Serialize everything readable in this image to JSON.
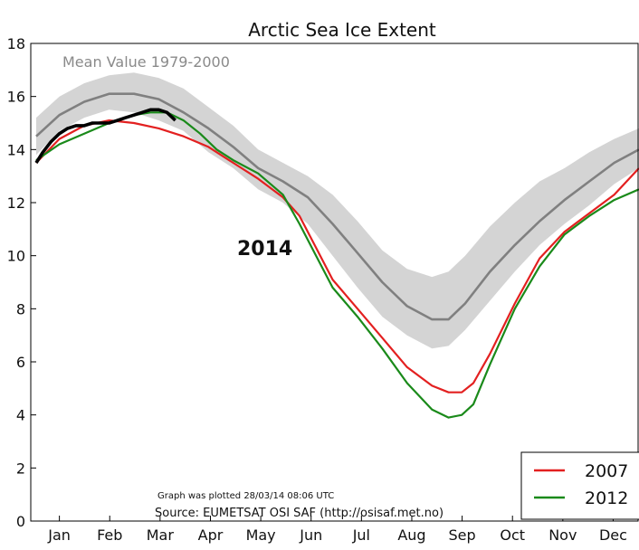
{
  "chart_data": {
    "type": "line",
    "title": "Arctic Sea Ice Extent",
    "xlabel": "",
    "ylabel": "",
    "ylim": [
      0,
      18
    ],
    "yticks": [
      "0",
      "2",
      "4",
      "6",
      "8",
      "10",
      "12",
      "14",
      "16",
      "18"
    ],
    "x_ticks": [
      "Jan",
      "Feb",
      "Mar",
      "Apr",
      "May",
      "Jun",
      "Jul",
      "Aug",
      "Sep",
      "Oct",
      "Nov",
      "Dec"
    ],
    "grid": false,
    "legend_position": "bottom-right",
    "annotations": {
      "mean_label": "Mean Value 1979-2000",
      "year_label": "2014",
      "plotted": "Graph was plotted 28/03/14 08:06 UTC",
      "source": "Source: EUMETSAT OSI SAF (http://osisaf.met.no)"
    },
    "band": {
      "x": [
        1,
        15,
        30,
        45,
        60,
        75,
        90,
        105,
        120,
        135,
        150,
        165,
        180,
        195,
        210,
        225,
        240,
        250,
        260,
        275,
        290,
        305,
        320,
        335,
        350,
        365
      ],
      "upper": [
        15.2,
        16.0,
        16.5,
        16.8,
        16.9,
        16.7,
        16.3,
        15.6,
        14.9,
        14.0,
        13.5,
        13.0,
        12.3,
        11.3,
        10.2,
        9.5,
        9.2,
        9.4,
        10.0,
        11.1,
        12.0,
        12.8,
        13.3,
        13.9,
        14.4,
        14.8
      ],
      "lower": [
        13.8,
        14.7,
        15.2,
        15.5,
        15.4,
        15.1,
        14.7,
        13.9,
        13.3,
        12.5,
        12.0,
        11.2,
        10.0,
        8.8,
        7.7,
        7.0,
        6.5,
        6.6,
        7.2,
        8.3,
        9.4,
        10.4,
        11.2,
        11.9,
        12.7,
        13.3
      ]
    },
    "series": [
      {
        "name": "",
        "color": "#808080",
        "x": [
          1,
          15,
          30,
          45,
          60,
          75,
          90,
          105,
          120,
          135,
          150,
          165,
          180,
          195,
          210,
          225,
          240,
          250,
          260,
          275,
          290,
          305,
          320,
          335,
          350,
          365
        ],
        "values": [
          14.5,
          15.3,
          15.8,
          16.1,
          16.1,
          15.9,
          15.4,
          14.8,
          14.1,
          13.3,
          12.8,
          12.2,
          11.2,
          10.1,
          9.0,
          8.1,
          7.6,
          7.6,
          8.2,
          9.4,
          10.4,
          11.3,
          12.1,
          12.8,
          13.5,
          14.0
        ]
      },
      {
        "name": "2007",
        "color": "#e32020",
        "x": [
          1,
          15,
          30,
          45,
          60,
          75,
          90,
          105,
          120,
          135,
          150,
          160,
          170,
          180,
          195,
          210,
          225,
          240,
          250,
          258,
          265,
          275,
          290,
          305,
          320,
          335,
          350,
          365
        ],
        "values": [
          13.5,
          14.4,
          14.9,
          15.1,
          15.0,
          14.8,
          14.5,
          14.1,
          13.5,
          12.9,
          12.2,
          11.5,
          10.3,
          9.1,
          8.0,
          6.9,
          5.8,
          5.1,
          4.85,
          4.85,
          5.2,
          6.3,
          8.2,
          9.9,
          10.9,
          11.6,
          12.3,
          13.3
        ]
      },
      {
        "name": "2012",
        "color": "#1a8a1a",
        "x": [
          1,
          15,
          30,
          45,
          60,
          70,
          80,
          90,
          100,
          110,
          120,
          135,
          150,
          160,
          170,
          180,
          195,
          210,
          225,
          240,
          250,
          258,
          265,
          275,
          290,
          305,
          320,
          335,
          350,
          365
        ],
        "values": [
          13.6,
          14.2,
          14.6,
          15.0,
          15.3,
          15.4,
          15.4,
          15.1,
          14.6,
          14.0,
          13.6,
          13.1,
          12.3,
          11.2,
          10.0,
          8.8,
          7.7,
          6.5,
          5.2,
          4.2,
          3.9,
          4.0,
          4.4,
          5.9,
          8.0,
          9.6,
          10.8,
          11.5,
          12.1,
          12.5
        ]
      },
      {
        "name": "",
        "color": "#000000",
        "x": [
          1,
          5,
          10,
          15,
          20,
          25,
          30,
          35,
          40,
          45,
          50,
          55,
          60,
          65,
          70,
          75,
          80,
          85
        ],
        "values": [
          13.5,
          13.9,
          14.3,
          14.6,
          14.8,
          14.9,
          14.9,
          15.0,
          15.0,
          15.0,
          15.1,
          15.2,
          15.3,
          15.4,
          15.5,
          15.5,
          15.4,
          15.1
        ]
      }
    ]
  }
}
